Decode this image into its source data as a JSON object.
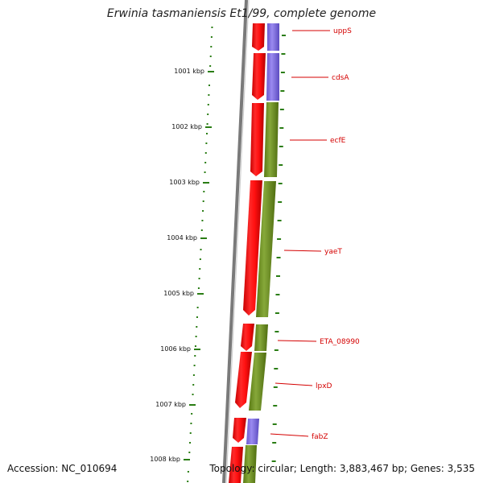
{
  "header": {
    "title": "Erwinia tasmaniensis Et1/99, complete genome"
  },
  "footer": {
    "accession": "Accession: NC_010694",
    "topology": "Topology: circular; Length: 3,883,467 bp; Genes: 3,535"
  },
  "ticks": [
    "1001 kbp",
    "1002 kbp",
    "1003 kbp",
    "1004 kbp",
    "1005 kbp",
    "1006 kbp",
    "1007 kbp",
    "1008 kbp"
  ],
  "genes": [
    {
      "label": "uppS"
    },
    {
      "label": "cdsA"
    },
    {
      "label": "ecfE"
    },
    {
      "label": "yaeT"
    },
    {
      "label": "ETA_08990"
    },
    {
      "label": "lpxD"
    },
    {
      "label": "fabZ"
    }
  ],
  "colors": {
    "red_track": "#e00000",
    "olive_track": "#6a8c1e",
    "purple_track": "#7b68dd",
    "backbone": "#777777",
    "ticks": "#2a7d14",
    "label_text": "#d40000"
  }
}
